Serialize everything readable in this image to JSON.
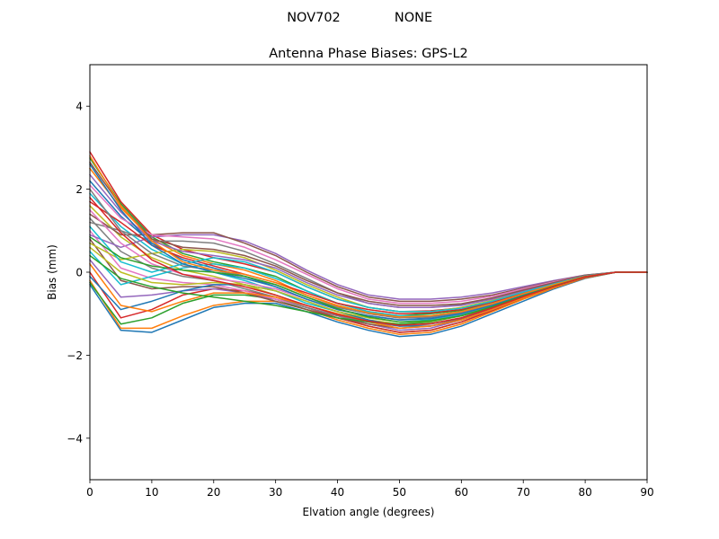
{
  "suptitle_left": "NOV702",
  "suptitle_right": "NONE",
  "chart_data": {
    "type": "line",
    "title": "Antenna Phase Biases: GPS-L2",
    "xlabel": "Elvation angle (degrees)",
    "ylabel": "Bias (mm)",
    "xlim": [
      0,
      90
    ],
    "ylim": [
      -5,
      5
    ],
    "xticks": [
      0,
      10,
      20,
      30,
      40,
      50,
      60,
      70,
      80,
      90
    ],
    "yticks": [
      -4,
      -2,
      0,
      2,
      4
    ],
    "ytick_labels": [
      "−4",
      "−2",
      "0",
      "2",
      "4"
    ],
    "grid": false,
    "x": [
      0,
      5,
      10,
      15,
      20,
      25,
      30,
      35,
      40,
      45,
      50,
      55,
      60,
      65,
      70,
      75,
      80,
      85,
      90
    ],
    "colors": [
      "#1f77b4",
      "#ff7f0e",
      "#2ca02c",
      "#d62728",
      "#9467bd",
      "#8c564b",
      "#e377c2",
      "#7f7f7f",
      "#bcbd22",
      "#17becf"
    ],
    "series": [
      {
        "values": [
          -0.3,
          -1.4,
          -1.45,
          -1.15,
          -0.85,
          -0.75,
          -0.75,
          -0.95,
          -1.2,
          -1.4,
          -1.55,
          -1.5,
          -1.3,
          -1.0,
          -0.7,
          -0.4,
          -0.15,
          0.0,
          0.0
        ]
      },
      {
        "values": [
          -0.2,
          -1.35,
          -1.35,
          -1.05,
          -0.8,
          -0.7,
          -0.7,
          -0.9,
          -1.15,
          -1.35,
          -1.5,
          -1.45,
          -1.25,
          -0.95,
          -0.65,
          -0.38,
          -0.14,
          0.0,
          0.0
        ]
      },
      {
        "values": [
          -0.25,
          -1.25,
          -1.1,
          -0.75,
          -0.55,
          -0.55,
          -0.65,
          -0.9,
          -1.1,
          -1.3,
          -1.45,
          -1.4,
          -1.2,
          -0.92,
          -0.62,
          -0.36,
          -0.13,
          0.0,
          0.0
        ]
      },
      {
        "values": [
          0.0,
          -1.1,
          -0.9,
          -0.55,
          -0.4,
          -0.45,
          -0.6,
          -0.85,
          -1.1,
          -1.3,
          -1.45,
          -1.4,
          -1.2,
          -0.92,
          -0.62,
          -0.36,
          -0.13,
          0.0,
          0.0
        ]
      },
      {
        "values": [
          0.3,
          -0.6,
          -0.55,
          -0.45,
          -0.4,
          -0.5,
          -0.65,
          -0.85,
          -1.05,
          -1.25,
          -1.4,
          -1.35,
          -1.15,
          -0.9,
          -0.6,
          -0.35,
          -0.12,
          0.0,
          0.0
        ]
      },
      {
        "values": [
          0.8,
          -0.2,
          -0.4,
          -0.35,
          -0.35,
          -0.5,
          -0.7,
          -0.9,
          -1.1,
          -1.25,
          -1.35,
          -1.3,
          -1.12,
          -0.88,
          -0.6,
          -0.35,
          -0.12,
          0.0,
          0.0
        ]
      },
      {
        "values": [
          1.0,
          0.1,
          -0.15,
          -0.25,
          -0.3,
          -0.45,
          -0.65,
          -0.85,
          -1.05,
          -1.2,
          -1.3,
          -1.25,
          -1.1,
          -0.86,
          -0.58,
          -0.33,
          -0.11,
          0.0,
          0.0
        ]
      },
      {
        "values": [
          1.3,
          0.5,
          0.1,
          -0.1,
          -0.2,
          -0.4,
          -0.6,
          -0.85,
          -1.05,
          -1.2,
          -1.3,
          -1.25,
          -1.1,
          -0.85,
          -0.57,
          -0.33,
          -0.11,
          0.0,
          0.0
        ]
      },
      {
        "values": [
          1.6,
          0.85,
          0.35,
          0.05,
          -0.1,
          -0.3,
          -0.55,
          -0.8,
          -1.0,
          -1.15,
          -1.25,
          -1.2,
          -1.05,
          -0.83,
          -0.56,
          -0.32,
          -0.1,
          0.0,
          0.0
        ]
      },
      {
        "values": [
          1.9,
          1.1,
          0.55,
          0.2,
          0.0,
          -0.2,
          -0.45,
          -0.75,
          -0.95,
          -1.1,
          -1.2,
          -1.15,
          -1.02,
          -0.8,
          -0.55,
          -0.32,
          -0.1,
          0.0,
          0.0
        ]
      },
      {
        "values": [
          2.2,
          1.35,
          0.7,
          0.3,
          0.1,
          -0.1,
          -0.35,
          -0.65,
          -0.9,
          -1.05,
          -1.15,
          -1.1,
          -0.98,
          -0.78,
          -0.54,
          -0.31,
          -0.1,
          0.0,
          0.0
        ]
      },
      {
        "values": [
          2.5,
          1.55,
          0.8,
          0.4,
          0.2,
          0.05,
          -0.2,
          -0.55,
          -0.82,
          -1.0,
          -1.1,
          -1.05,
          -0.95,
          -0.75,
          -0.52,
          -0.3,
          -0.1,
          0.0,
          0.0
        ]
      },
      {
        "values": [
          2.75,
          1.65,
          0.85,
          0.45,
          0.25,
          0.1,
          -0.1,
          -0.45,
          -0.75,
          -0.95,
          -1.05,
          -1.0,
          -0.92,
          -0.73,
          -0.5,
          -0.29,
          -0.09,
          0.0,
          0.0
        ]
      },
      {
        "values": [
          2.9,
          1.7,
          0.9,
          0.55,
          0.35,
          0.2,
          0.0,
          -0.35,
          -0.65,
          -0.85,
          -0.95,
          -0.93,
          -0.86,
          -0.7,
          -0.48,
          -0.28,
          -0.09,
          0.0,
          0.0
        ]
      },
      {
        "values": [
          0.9,
          0.6,
          0.85,
          0.9,
          0.9,
          0.75,
          0.45,
          0.05,
          -0.3,
          -0.55,
          -0.65,
          -0.65,
          -0.6,
          -0.5,
          -0.35,
          -0.2,
          -0.07,
          0.0,
          0.0
        ]
      },
      {
        "values": [
          1.4,
          0.9,
          0.9,
          0.95,
          0.95,
          0.7,
          0.4,
          0.0,
          -0.35,
          -0.6,
          -0.7,
          -0.7,
          -0.65,
          -0.55,
          -0.38,
          -0.22,
          -0.07,
          0.0,
          0.0
        ]
      },
      {
        "values": [
          2.1,
          1.3,
          0.9,
          0.85,
          0.8,
          0.6,
          0.3,
          -0.05,
          -0.4,
          -0.65,
          -0.75,
          -0.75,
          -0.7,
          -0.58,
          -0.4,
          -0.23,
          -0.08,
          0.0,
          0.0
        ]
      },
      {
        "values": [
          1.2,
          1.0,
          0.75,
          0.75,
          0.7,
          0.5,
          0.2,
          -0.15,
          -0.5,
          -0.75,
          -0.85,
          -0.85,
          -0.78,
          -0.63,
          -0.44,
          -0.25,
          -0.08,
          0.0,
          0.0
        ]
      },
      {
        "values": [
          0.7,
          0.3,
          0.45,
          0.55,
          0.5,
          0.35,
          0.05,
          -0.3,
          -0.6,
          -0.85,
          -0.95,
          -0.95,
          -0.85,
          -0.68,
          -0.47,
          -0.27,
          -0.09,
          0.0,
          0.0
        ]
      },
      {
        "values": [
          0.5,
          -0.3,
          -0.1,
          0.1,
          0.2,
          0.1,
          -0.15,
          -0.45,
          -0.75,
          -0.95,
          -1.05,
          -1.05,
          -0.95,
          -0.75,
          -0.52,
          -0.3,
          -0.1,
          0.0,
          0.0
        ]
      },
      {
        "values": [
          -0.1,
          -0.9,
          -0.7,
          -0.45,
          -0.3,
          -0.3,
          -0.45,
          -0.7,
          -0.95,
          -1.15,
          -1.3,
          -1.3,
          -1.15,
          -0.9,
          -0.62,
          -0.36,
          -0.12,
          0.0,
          0.0
        ]
      },
      {
        "values": [
          0.2,
          -0.8,
          -0.95,
          -0.7,
          -0.5,
          -0.5,
          -0.6,
          -0.8,
          -1.0,
          -1.2,
          -1.35,
          -1.3,
          -1.15,
          -0.9,
          -0.62,
          -0.36,
          -0.12,
          0.0,
          0.0
        ]
      },
      {
        "values": [
          0.4,
          -0.15,
          -0.35,
          -0.5,
          -0.6,
          -0.7,
          -0.8,
          -0.95,
          -1.1,
          -1.2,
          -1.25,
          -1.2,
          -1.05,
          -0.85,
          -0.58,
          -0.34,
          -0.11,
          0.0,
          0.0
        ]
      },
      {
        "values": [
          1.7,
          1.2,
          0.65,
          0.35,
          0.15,
          -0.05,
          -0.25,
          -0.5,
          -0.75,
          -0.9,
          -1.0,
          -0.98,
          -0.9,
          -0.72,
          -0.5,
          -0.29,
          -0.09,
          0.0,
          0.0
        ]
      },
      {
        "values": [
          2.35,
          1.45,
          0.75,
          0.5,
          0.4,
          0.3,
          0.1,
          -0.25,
          -0.55,
          -0.75,
          -0.85,
          -0.85,
          -0.8,
          -0.65,
          -0.45,
          -0.26,
          -0.08,
          0.0,
          0.0
        ]
      },
      {
        "values": [
          2.65,
          1.6,
          0.8,
          0.6,
          0.55,
          0.4,
          0.15,
          -0.2,
          -0.5,
          -0.7,
          -0.8,
          -0.8,
          -0.76,
          -0.62,
          -0.43,
          -0.25,
          -0.08,
          0.0,
          0.0
        ]
      },
      {
        "values": [
          1.5,
          0.7,
          0.2,
          -0.05,
          -0.15,
          -0.25,
          -0.4,
          -0.65,
          -0.9,
          -1.05,
          -1.15,
          -1.12,
          -1.0,
          -0.8,
          -0.56,
          -0.33,
          -0.11,
          0.0,
          0.0
        ]
      },
      {
        "values": [
          2.0,
          1.0,
          0.45,
          0.15,
          0.05,
          -0.1,
          -0.3,
          -0.6,
          -0.85,
          -1.0,
          -1.1,
          -1.08,
          -0.97,
          -0.78,
          -0.54,
          -0.32,
          -0.1,
          0.0,
          0.0
        ]
      },
      {
        "values": [
          0.6,
          0.0,
          -0.25,
          -0.3,
          -0.25,
          -0.3,
          -0.45,
          -0.7,
          -0.95,
          -1.1,
          -1.2,
          -1.18,
          -1.05,
          -0.83,
          -0.57,
          -0.33,
          -0.11,
          0.0,
          0.0
        ]
      },
      {
        "values": [
          1.1,
          0.25,
          0.0,
          0.2,
          0.35,
          0.25,
          0.0,
          -0.35,
          -0.65,
          -0.85,
          -0.95,
          -0.95,
          -0.87,
          -0.7,
          -0.48,
          -0.28,
          -0.09,
          0.0,
          0.0
        ]
      },
      {
        "values": [
          2.6,
          1.5,
          0.65,
          0.2,
          0.0,
          -0.15,
          -0.35,
          -0.65,
          -0.9,
          -1.05,
          -1.15,
          -1.12,
          -1.0,
          -0.8,
          -0.55,
          -0.32,
          -0.1,
          0.0,
          0.0
        ]
      },
      {
        "values": [
          2.8,
          1.6,
          0.75,
          0.25,
          0.05,
          -0.05,
          -0.25,
          -0.55,
          -0.8,
          -0.98,
          -1.08,
          -1.05,
          -0.95,
          -0.76,
          -0.52,
          -0.3,
          -0.1,
          0.0,
          0.0
        ]
      },
      {
        "values": [
          0.85,
          0.35,
          0.15,
          0.05,
          0.0,
          -0.1,
          -0.3,
          -0.6,
          -0.88,
          -1.08,
          -1.2,
          -1.17,
          -1.05,
          -0.83,
          -0.57,
          -0.33,
          -0.11,
          0.0,
          0.0
        ]
      },
      {
        "values": [
          1.8,
          0.95,
          0.3,
          -0.05,
          -0.2,
          -0.35,
          -0.55,
          -0.8,
          -1.02,
          -1.18,
          -1.28,
          -1.24,
          -1.1,
          -0.86,
          -0.59,
          -0.34,
          -0.11,
          0.0,
          0.0
        ]
      }
    ]
  }
}
